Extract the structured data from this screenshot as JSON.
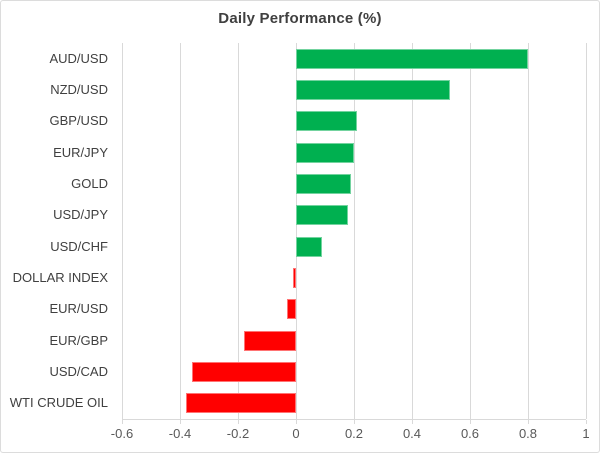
{
  "chart_data": {
    "type": "bar",
    "orientation": "horizontal",
    "title": "Daily Performance (%)",
    "categories": [
      "AUD/USD",
      "NZD/USD",
      "GBP/USD",
      "EUR/JPY",
      "GOLD",
      "USD/JPY",
      "USD/CHF",
      "DOLLAR INDEX",
      "EUR/USD",
      "EUR/GBP",
      "USD/CAD",
      "WTI CRUDE OIL"
    ],
    "values": [
      0.8,
      0.53,
      0.21,
      0.2,
      0.19,
      0.18,
      0.09,
      -0.01,
      -0.03,
      -0.18,
      -0.36,
      -0.38
    ],
    "xlabel": "",
    "ylabel": "",
    "xlim": [
      -0.6,
      1.0
    ],
    "xticks": [
      -0.6,
      -0.4,
      -0.2,
      0,
      0.2,
      0.4,
      0.6,
      0.8,
      1
    ],
    "xtick_labels": [
      "-0.6",
      "-0.4",
      "-0.2",
      "0",
      "0.2",
      "0.4",
      "0.6",
      "0.8",
      "1"
    ],
    "grid": true,
    "legend": false,
    "positive_color": "#00b050",
    "negative_color": "#ff0000",
    "gridline_color": "#d9d9d9",
    "axis_text_color": "#595959",
    "category_text_color": "#404040",
    "title_color": "#404040"
  }
}
